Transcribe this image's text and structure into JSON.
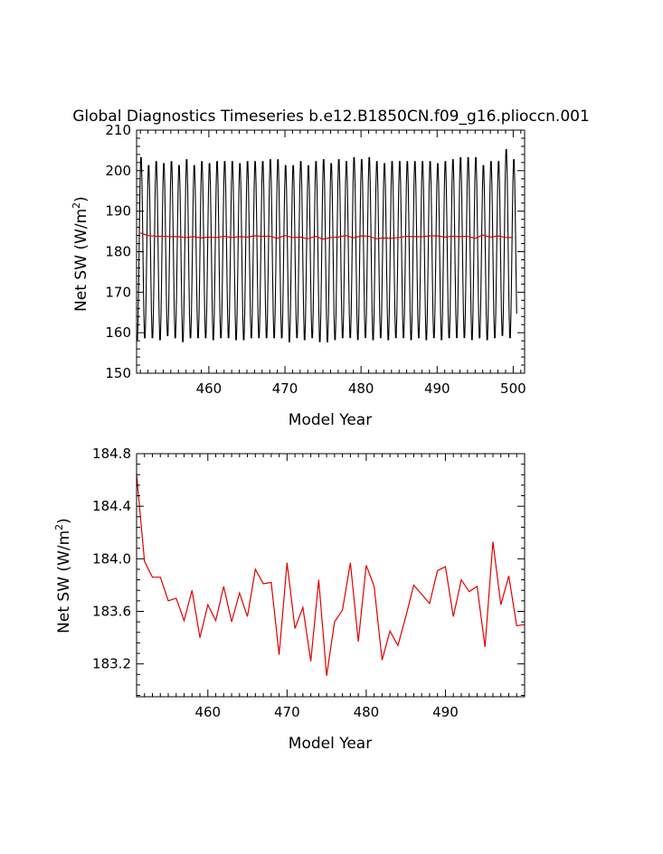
{
  "title": "Global Diagnostics Timeseries b.e12.B1850CN.f09_g16.plioccn.001",
  "colors": {
    "monthly": "#000000",
    "annual": "#e00000",
    "axes": "#000000"
  },
  "chart_data": [
    {
      "type": "line",
      "xlabel": "Model Year",
      "ylabel_prefix": "Net SW (W/m",
      "ylabel_sup": "2",
      "ylabel_suffix": ")",
      "xlim": [
        450.5,
        501.5
      ],
      "ylim": [
        150,
        210
      ],
      "xticks": [
        460,
        470,
        480,
        490,
        500
      ],
      "xtick_labels": [
        "460",
        "470",
        "480",
        "490",
        "500"
      ],
      "yticks": [
        150,
        160,
        170,
        180,
        190,
        200,
        210
      ],
      "ytick_labels": [
        "150",
        "160",
        "170",
        "180",
        "190",
        "200",
        "210"
      ],
      "series": [
        {
          "kind": "monthly",
          "seasonal_max": [
            204.0,
            202.0,
            203.0,
            202.5,
            203.0,
            202.0,
            203.5,
            202.0,
            203.0,
            202.5,
            203.0,
            203.0,
            203.0,
            202.5,
            203.0,
            203.0,
            203.0,
            203.5,
            203.5,
            202.0,
            202.0,
            203.0,
            202.0,
            203.0,
            203.5,
            202.5,
            203.5,
            203.0,
            204.0,
            203.5,
            204.0,
            203.0,
            202.5,
            203.0,
            203.0,
            203.0,
            203.0,
            203.0,
            203.0,
            202.5,
            203.0,
            203.5,
            204.0,
            204.0,
            204.0,
            202.0,
            203.0,
            203.0,
            206.0,
            203.5
          ],
          "seasonal_min": [
            157.5,
            158.0,
            158.0,
            157.5,
            158.5,
            158.0,
            157.0,
            158.0,
            158.0,
            158.0,
            157.5,
            158.0,
            158.0,
            157.5,
            157.5,
            158.0,
            158.0,
            158.0,
            158.0,
            158.0,
            157.0,
            158.0,
            157.5,
            158.0,
            157.0,
            157.0,
            157.5,
            158.0,
            158.0,
            157.5,
            158.0,
            157.5,
            158.0,
            157.5,
            158.0,
            158.0,
            157.5,
            158.0,
            157.5,
            158.0,
            157.5,
            158.0,
            158.0,
            158.0,
            157.5,
            158.0,
            157.5,
            158.0,
            158.5,
            158.0
          ]
        },
        {
          "kind": "annual",
          "x": [
            451,
            452,
            453,
            454,
            455,
            456,
            457,
            458,
            459,
            460,
            461,
            462,
            463,
            464,
            465,
            466,
            467,
            468,
            469,
            470,
            471,
            472,
            473,
            474,
            475,
            476,
            477,
            478,
            479,
            480,
            481,
            482,
            483,
            484,
            485,
            486,
            487,
            488,
            489,
            490,
            491,
            492,
            493,
            494,
            495,
            496,
            497,
            498,
            499,
            500
          ],
          "values": [
            184.6,
            184.0,
            183.8,
            183.8,
            183.7,
            183.7,
            183.5,
            183.7,
            183.4,
            183.6,
            183.5,
            183.8,
            183.5,
            183.7,
            183.6,
            183.9,
            183.8,
            183.8,
            183.3,
            184.0,
            183.5,
            183.6,
            183.2,
            183.8,
            183.1,
            183.5,
            183.6,
            184.0,
            183.4,
            183.9,
            183.8,
            183.2,
            183.4,
            183.3,
            183.5,
            183.8,
            183.7,
            183.7,
            183.9,
            183.9,
            183.6,
            183.8,
            183.7,
            183.8,
            183.3,
            184.1,
            183.6,
            183.9,
            183.5,
            183.5
          ]
        }
      ]
    },
    {
      "type": "line",
      "xlabel": "Model Year",
      "ylabel_prefix": "Net SW (W/m",
      "ylabel_sup": "2",
      "ylabel_suffix": ")",
      "xlim": [
        451,
        500
      ],
      "ylim": [
        182.95,
        184.8
      ],
      "xticks": [
        460,
        470,
        480,
        490
      ],
      "xtick_labels": [
        "460",
        "470",
        "480",
        "490"
      ],
      "yticks": [
        183.2,
        183.6,
        184.0,
        184.4,
        184.8
      ],
      "ytick_labels": [
        "183.2",
        "183.6",
        "184.0",
        "184.4",
        "184.8"
      ],
      "series": [
        {
          "kind": "annual",
          "x": [
            451,
            452,
            453,
            454,
            455,
            456,
            457,
            458,
            459,
            460,
            461,
            462,
            463,
            464,
            465,
            466,
            467,
            468,
            469,
            470,
            471,
            472,
            473,
            474,
            475,
            476,
            477,
            478,
            479,
            480,
            481,
            482,
            483,
            484,
            485,
            486,
            487,
            488,
            489,
            490,
            491,
            492,
            493,
            494,
            495,
            496,
            497,
            498,
            499,
            500
          ],
          "values": [
            184.64,
            183.98,
            183.86,
            183.86,
            183.68,
            183.7,
            183.53,
            183.76,
            183.4,
            183.65,
            183.53,
            183.79,
            183.52,
            183.74,
            183.56,
            183.92,
            183.81,
            183.82,
            183.27,
            183.97,
            183.47,
            183.63,
            183.22,
            183.84,
            183.11,
            183.52,
            183.61,
            183.97,
            183.37,
            183.95,
            183.79,
            183.23,
            183.45,
            183.34,
            183.56,
            183.8,
            183.73,
            183.66,
            183.91,
            183.94,
            183.56,
            183.84,
            183.75,
            183.79,
            183.33,
            184.13,
            183.65,
            183.87,
            183.49,
            183.5
          ]
        }
      ]
    }
  ]
}
